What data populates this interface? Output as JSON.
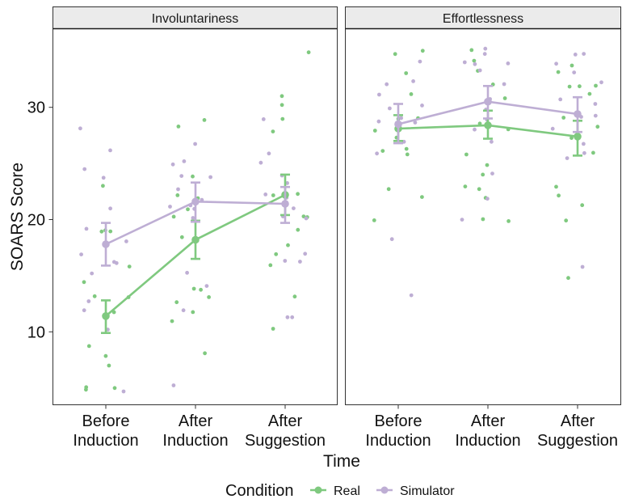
{
  "chart_data": {
    "type": "line",
    "facets": [
      "Involuntariness",
      "Effortlessness"
    ],
    "categories": [
      "Before\nInduction",
      "After\nInduction",
      "After\nSuggestion"
    ],
    "xlabel": "Time",
    "ylabel": "SOARS Score",
    "ylim": [
      3.5,
      37
    ],
    "yticks": [
      10,
      20,
      30
    ],
    "legend": {
      "title": "Condition",
      "position": "bottom"
    },
    "colors": {
      "Real": "#7fc97f",
      "Simulator": "#beaed4"
    },
    "series": [
      {
        "name": "Real",
        "facet": "Involuntariness",
        "means": [
          11.4,
          18.2,
          22.2
        ],
        "ci_low": [
          9.9,
          16.5,
          20.4
        ],
        "ci_high": [
          12.8,
          19.9,
          24.0
        ]
      },
      {
        "name": "Simulator",
        "facet": "Involuntariness",
        "means": [
          17.8,
          21.6,
          21.4
        ],
        "ci_low": [
          15.9,
          19.8,
          19.7
        ],
        "ci_high": [
          19.7,
          23.3,
          22.9
        ]
      },
      {
        "name": "Real",
        "facet": "Effortlessness",
        "means": [
          28.1,
          28.4,
          27.4
        ],
        "ci_low": [
          27.0,
          27.2,
          25.7
        ],
        "ci_high": [
          29.3,
          29.7,
          28.8
        ]
      },
      {
        "name": "Simulator",
        "facet": "Effortlessness",
        "means": [
          28.5,
          30.5,
          29.4
        ],
        "ci_low": [
          26.8,
          29.0,
          27.8
        ],
        "ci_high": [
          30.3,
          31.9,
          30.9
        ]
      }
    ],
    "points": {
      "Involuntariness": {
        "Real": [
          [
            0,
            19
          ],
          [
            0,
            5
          ],
          [
            0,
            23
          ],
          [
            0,
            14.2
          ],
          [
            0,
            19
          ],
          [
            0,
            13
          ],
          [
            0,
            12
          ],
          [
            0,
            8
          ],
          [
            0,
            5.2
          ],
          [
            0,
            7
          ],
          [
            0,
            9
          ],
          [
            0,
            12.8
          ],
          [
            0,
            5.1
          ],
          [
            0,
            16
          ],
          [
            0,
            18.9
          ],
          [
            1,
            29
          ],
          [
            1,
            28
          ],
          [
            1,
            24
          ],
          [
            1,
            22
          ],
          [
            1,
            22
          ],
          [
            1,
            21
          ],
          [
            1,
            20
          ],
          [
            1,
            18.2
          ],
          [
            1,
            14
          ],
          [
            1,
            13.8
          ],
          [
            1,
            13
          ],
          [
            1,
            12.8
          ],
          [
            1,
            12
          ],
          [
            1,
            11
          ],
          [
            1,
            8
          ],
          [
            2,
            35
          ],
          [
            2,
            31
          ],
          [
            2,
            30
          ],
          [
            2,
            29
          ],
          [
            2,
            28
          ],
          [
            2,
            22.5
          ],
          [
            2,
            22
          ],
          [
            2,
            20
          ],
          [
            2,
            20
          ],
          [
            2,
            19
          ],
          [
            2,
            18
          ],
          [
            2,
            17
          ],
          [
            2,
            16
          ],
          [
            2,
            13
          ],
          [
            2,
            10
          ]
        ],
        "Simulator": [
          [
            0,
            28.2
          ],
          [
            0,
            26.2
          ],
          [
            0,
            24.2
          ],
          [
            0,
            23.5
          ],
          [
            0,
            21
          ],
          [
            0,
            19
          ],
          [
            0,
            18.2
          ],
          [
            0,
            17.1
          ],
          [
            0,
            16
          ],
          [
            0,
            16
          ],
          [
            0,
            15
          ],
          [
            0,
            13
          ],
          [
            0,
            12.2
          ],
          [
            0,
            10
          ],
          [
            0,
            4.9
          ],
          [
            1,
            27
          ],
          [
            1,
            25.2
          ],
          [
            1,
            25
          ],
          [
            1,
            24
          ],
          [
            1,
            24
          ],
          [
            1,
            23
          ],
          [
            1,
            22
          ],
          [
            1,
            21.5
          ],
          [
            1,
            21
          ],
          [
            1,
            21
          ],
          [
            1,
            20
          ],
          [
            1,
            15
          ],
          [
            1,
            14
          ],
          [
            1,
            12
          ],
          [
            1,
            5
          ],
          [
            2,
            29.2
          ],
          [
            2,
            26
          ],
          [
            2,
            25
          ],
          [
            2,
            24
          ],
          [
            2,
            23
          ],
          [
            2,
            22
          ],
          [
            2,
            22
          ],
          [
            2,
            21
          ],
          [
            2,
            20
          ],
          [
            2,
            20
          ],
          [
            2,
            17
          ],
          [
            2,
            16.2
          ],
          [
            2,
            16
          ],
          [
            2,
            11
          ],
          [
            2,
            11.1
          ]
        ]
      },
      "Effortlessness": {
        "Real": [
          [
            0,
            35
          ],
          [
            0,
            35
          ],
          [
            0,
            33.1
          ],
          [
            0,
            31
          ],
          [
            0,
            29
          ],
          [
            0,
            28.9
          ],
          [
            0,
            28
          ],
          [
            0,
            27
          ],
          [
            0,
            26.5
          ],
          [
            0,
            26
          ],
          [
            0,
            26.1
          ],
          [
            0,
            23
          ],
          [
            0,
            22
          ],
          [
            0,
            20
          ],
          [
            1,
            35
          ],
          [
            1,
            34
          ],
          [
            1,
            33
          ],
          [
            1,
            32.1
          ],
          [
            1,
            31
          ],
          [
            1,
            28.6
          ],
          [
            1,
            28
          ],
          [
            1,
            26
          ],
          [
            1,
            25
          ],
          [
            1,
            24
          ],
          [
            1,
            23
          ],
          [
            1,
            22.8
          ],
          [
            1,
            21.9
          ],
          [
            1,
            20.1
          ],
          [
            1,
            20.2
          ],
          [
            2,
            34
          ],
          [
            2,
            33
          ],
          [
            2,
            32.2
          ],
          [
            2,
            32
          ],
          [
            2,
            32
          ],
          [
            2,
            31.2
          ],
          [
            2,
            29
          ],
          [
            2,
            28
          ],
          [
            2,
            27
          ],
          [
            2,
            26
          ],
          [
            2,
            23.1
          ],
          [
            2,
            22
          ],
          [
            2,
            21
          ],
          [
            2,
            20
          ],
          [
            2,
            15
          ]
        ],
        "Simulator": [
          [
            0,
            34
          ],
          [
            0,
            32.2
          ],
          [
            0,
            32
          ],
          [
            0,
            31
          ],
          [
            0,
            30.1
          ],
          [
            0,
            30
          ],
          [
            0,
            29
          ],
          [
            0,
            28.8
          ],
          [
            0,
            28.5
          ],
          [
            0,
            28
          ],
          [
            0,
            27
          ],
          [
            0,
            26.1
          ],
          [
            0,
            18
          ],
          [
            0,
            13
          ],
          [
            1,
            35
          ],
          [
            1,
            35
          ],
          [
            1,
            34
          ],
          [
            1,
            34
          ],
          [
            1,
            34.1
          ],
          [
            1,
            33
          ],
          [
            1,
            32
          ],
          [
            1,
            31
          ],
          [
            1,
            30
          ],
          [
            1,
            29
          ],
          [
            1,
            28
          ],
          [
            1,
            27.1
          ],
          [
            1,
            24
          ],
          [
            1,
            22.1
          ],
          [
            1,
            20
          ],
          [
            2,
            35
          ],
          [
            2,
            35
          ],
          [
            2,
            34
          ],
          [
            2,
            33
          ],
          [
            2,
            32
          ],
          [
            2,
            31
          ],
          [
            2,
            30
          ],
          [
            2,
            29.1
          ],
          [
            2,
            28.9
          ],
          [
            2,
            28.2
          ],
          [
            2,
            27
          ],
          [
            2,
            26
          ],
          [
            2,
            25.2
          ],
          [
            2,
            16
          ]
        ]
      }
    }
  }
}
